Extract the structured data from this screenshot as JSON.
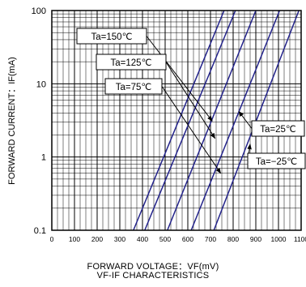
{
  "chart_data": {
    "type": "line",
    "title": "VF-IF CHARACTERISTICS",
    "xlabel": "FORWARD VOLTAGE：VF(mV)",
    "ylabel": "FORWARD CURRENT：IF(mA)",
    "xlim": [
      0,
      1100
    ],
    "ylim": [
      0.1,
      100
    ],
    "y_scale": "log",
    "grid": true,
    "x_ticks": [
      "0",
      "100",
      "200",
      "300",
      "400",
      "500",
      "600",
      "700",
      "800",
      "900",
      "1000",
      "1100"
    ],
    "y_ticks": [
      "0.1",
      "1",
      "10",
      "100"
    ],
    "series_color": "#22228a",
    "series": [
      {
        "name": "Ta=150℃",
        "x": [
          360,
          760
        ],
        "y": [
          0.1,
          100
        ]
      },
      {
        "name": "Ta=125℃",
        "x": [
          410,
          810
        ],
        "y": [
          0.1,
          100
        ]
      },
      {
        "name": "Ta=75℃",
        "x": [
          510,
          900
        ],
        "y": [
          0.1,
          100
        ]
      },
      {
        "name": "Ta=25℃",
        "x": [
          615,
          1005
        ],
        "y": [
          0.1,
          100
        ]
      },
      {
        "name": "Ta=−25℃",
        "x": [
          715,
          1090
        ],
        "y": [
          0.1,
          100
        ]
      }
    ],
    "annotations": [
      {
        "text": "Ta=150℃",
        "arrow_to": [
          708,
          3.1
        ]
      },
      {
        "text": "Ta=125℃",
        "arrow_to": [
          720,
          1.8
        ]
      },
      {
        "text": "Ta=75℃",
        "arrow_to": [
          745,
          0.6
        ]
      },
      {
        "text": "Ta=25℃",
        "arrow_to": [
          825,
          4.2
        ]
      },
      {
        "text": "Ta=−25℃",
        "arrow_to": [
          875,
          1.5
        ]
      }
    ]
  }
}
